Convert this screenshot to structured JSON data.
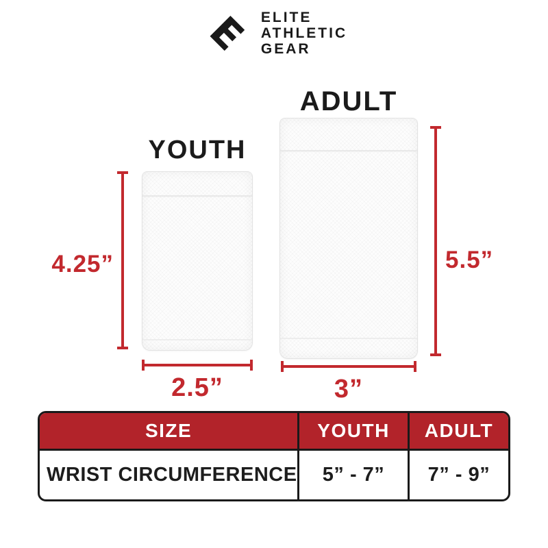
{
  "colors": {
    "dimension_red": "#C2292E",
    "table_header_red": "#B2232A",
    "text_black": "#1a1a1a",
    "fabric_white": "#fdfdfd"
  },
  "logo": {
    "icon_letter": "E",
    "lines": [
      "ELITE",
      "ATHLETIC",
      "GEAR"
    ]
  },
  "diagram": {
    "youth": {
      "label": "YOUTH",
      "height_label": "4.25”",
      "width_label": "2.5”"
    },
    "adult": {
      "label": "ADULT",
      "height_label": "5.5”",
      "width_label": "3”"
    }
  },
  "table": {
    "headers": [
      "SIZE",
      "YOUTH",
      "ADULT"
    ],
    "rows": [
      [
        "WRIST CIRCUMFERENCE",
        "5” - 7”",
        "7” - 9”"
      ]
    ]
  }
}
